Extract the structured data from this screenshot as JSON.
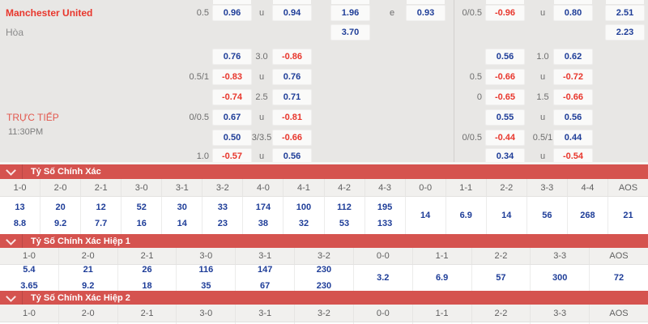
{
  "colors": {
    "section_bar_red": "#d5534f",
    "odds_blue": "#1e3d98",
    "odds_red": "#e8362c",
    "background_gray": "#e8e7e5"
  },
  "match": {
    "home_team": "Manchester United",
    "draw_label": "Hòa",
    "live_label": "TRỰC TIẾP",
    "time": "11:30PM"
  },
  "odds": {
    "left_rows": [
      {
        "label": "0.5",
        "a": "0.96",
        "m": "u",
        "b": "0.94",
        "c": "1.96",
        "m2": "e",
        "d": "0.93"
      },
      {
        "c": "3.70"
      },
      {
        "a": "0.76",
        "m": "3.0",
        "b": "-0.86"
      },
      {
        "label": "0.5/1",
        "a": "-0.83",
        "m": "u",
        "b": "0.76"
      },
      {
        "a": "-0.74",
        "m": "2.5",
        "b": "0.71"
      },
      {
        "label": "0/0.5",
        "a": "0.67",
        "m": "u",
        "b": "-0.81"
      },
      {
        "a": "0.50",
        "m": "3/3.5",
        "b": "-0.66"
      },
      {
        "label": "1.0",
        "a": "-0.57",
        "m": "u",
        "b": "0.56"
      }
    ],
    "right_rows": [
      {
        "label": "0/0.5",
        "a": "-0.96",
        "m": "u",
        "b": "0.80",
        "c": "2.51"
      },
      {
        "c": "2.23"
      },
      {
        "a": "0.56",
        "m": "1.0",
        "b": "0.62"
      },
      {
        "label": "0.5",
        "a": "-0.66",
        "m": "u",
        "b": "-0.72"
      },
      {
        "label": "0",
        "a": "-0.65",
        "m": "1.5",
        "b": "-0.66"
      },
      {
        "a": "0.55",
        "m": "u",
        "b": "0.56"
      },
      {
        "label": "0/0.5",
        "a": "-0.44",
        "m": "0.5/1",
        "b": "0.44"
      },
      {
        "a": "0.34",
        "m": "u",
        "b": "-0.54"
      }
    ]
  },
  "sections": [
    {
      "title": "Tỷ Số Chính Xác",
      "columns": [
        "1-0",
        "2-0",
        "2-1",
        "3-0",
        "3-1",
        "3-2",
        "4-0",
        "4-1",
        "4-2",
        "4-3",
        "0-0",
        "1-1",
        "2-2",
        "3-3",
        "4-4",
        "AOS"
      ],
      "values": [
        [
          "13",
          "8.8"
        ],
        [
          "20",
          "9.2"
        ],
        [
          "12",
          "7.7"
        ],
        [
          "52",
          "16"
        ],
        [
          "30",
          "14"
        ],
        [
          "33",
          "23"
        ],
        [
          "174",
          "38"
        ],
        [
          "100",
          "32"
        ],
        [
          "112",
          "53"
        ],
        [
          "195",
          "133"
        ],
        [
          "14"
        ],
        [
          "6.9"
        ],
        [
          "14"
        ],
        [
          "56"
        ],
        [
          "268"
        ],
        [
          "21"
        ]
      ]
    },
    {
      "title": "Tỷ Số Chính Xác Hiệp 1",
      "columns": [
        "1-0",
        "2-0",
        "2-1",
        "3-0",
        "3-1",
        "3-2",
        "0-0",
        "1-1",
        "2-2",
        "3-3",
        "AOS"
      ],
      "values": [
        [
          "5.4",
          "3.65"
        ],
        [
          "21",
          "9.2"
        ],
        [
          "26",
          "18"
        ],
        [
          "116",
          "35"
        ],
        [
          "147",
          "67"
        ],
        [
          "230",
          "230"
        ],
        [
          "3.2"
        ],
        [
          "6.9"
        ],
        [
          "57"
        ],
        [
          "300"
        ],
        [
          "72"
        ]
      ]
    },
    {
      "title": "Tỷ Số Chính Xác Hiệp 2",
      "columns": [
        "1-0",
        "2-0",
        "2-1",
        "3-0",
        "3-1",
        "3-2",
        "0-0",
        "1-1",
        "2-2",
        "3-3",
        "AOS"
      ],
      "values": []
    }
  ]
}
